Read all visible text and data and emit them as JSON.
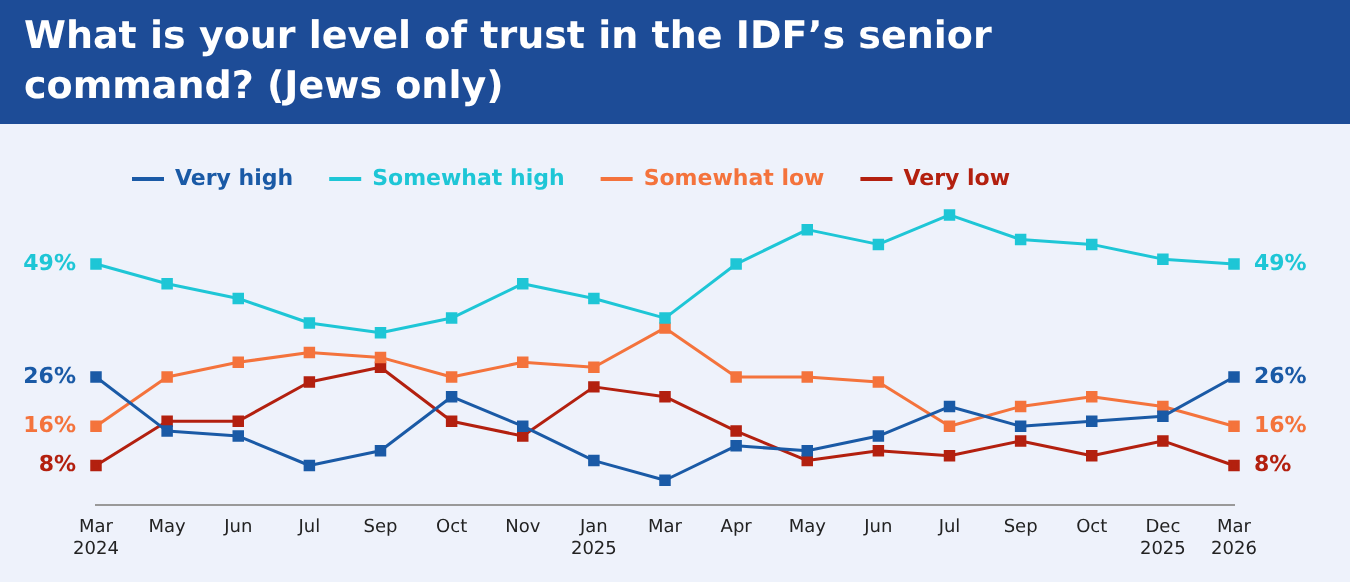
{
  "chart_data": {
    "type": "line",
    "title": "What is your level of trust in the IDF’s senior command? (Jews only)",
    "categories": [
      "Mar\n2024",
      "May",
      "Jun",
      "Jul",
      "Sep",
      "Oct",
      "Nov",
      "Jan\n2025",
      "Mar",
      "Apr",
      "May",
      "Jun",
      "Jul",
      "Sep",
      "Oct",
      "Dec\n2025",
      "Mar\n2026"
    ],
    "series": [
      {
        "name": "Very high",
        "color": "#1a5aa6",
        "values": [
          26,
          15,
          14,
          8,
          11,
          22,
          16,
          9,
          5,
          12,
          11,
          14,
          20,
          16,
          17,
          18,
          26
        ],
        "value_labels": [
          "26%",
          null,
          null,
          null,
          null,
          null,
          null,
          null,
          null,
          null,
          null,
          null,
          null,
          null,
          null,
          null,
          "26%"
        ]
      },
      {
        "name": "Somewhat high",
        "color": "#1ec6d6",
        "values": [
          49,
          45,
          42,
          37,
          35,
          38,
          45,
          42,
          38,
          49,
          56,
          53,
          59,
          54,
          53,
          50,
          49
        ],
        "value_labels": [
          "49%",
          null,
          null,
          null,
          null,
          null,
          null,
          null,
          null,
          null,
          null,
          null,
          null,
          null,
          null,
          null,
          "49%"
        ]
      },
      {
        "name": "Somewhat low",
        "color": "#f4733c",
        "values": [
          16,
          26,
          29,
          31,
          30,
          26,
          29,
          28,
          36,
          26,
          26,
          25,
          16,
          20,
          22,
          20,
          16
        ],
        "value_labels": [
          "16%",
          null,
          null,
          null,
          null,
          null,
          null,
          null,
          null,
          null,
          null,
          null,
          null,
          null,
          null,
          null,
          "16%"
        ]
      },
      {
        "name": "Very low",
        "color": "#b3200f",
        "values": [
          8,
          17,
          17,
          25,
          28,
          17,
          14,
          24,
          22,
          15,
          9,
          11,
          10,
          13,
          10,
          13,
          8
        ],
        "value_labels": [
          "8%",
          null,
          null,
          null,
          null,
          null,
          null,
          null,
          null,
          null,
          null,
          null,
          null,
          null,
          null,
          null,
          "8%"
        ]
      }
    ],
    "legend": "top left",
    "marker": "square",
    "line_style": "solid",
    "grid": false,
    "tick_labels": "x"
  }
}
